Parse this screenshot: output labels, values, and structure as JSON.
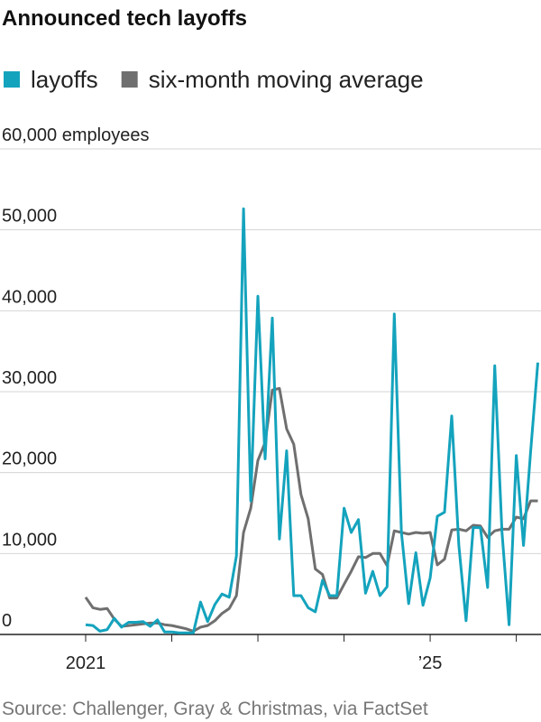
{
  "chart_data": {
    "type": "line",
    "title": "Announced tech layoffs",
    "source": "Source: Challenger, Gray & Christmas, via FactSet",
    "categories": [
      "2021",
      null,
      null,
      null,
      null,
      null,
      null,
      null,
      null,
      null,
      null,
      null,
      null,
      null,
      null,
      null,
      null,
      null,
      null,
      null,
      null,
      null,
      null,
      null,
      null,
      null,
      null,
      null,
      null,
      null,
      null,
      null,
      null,
      null,
      null,
      null,
      null,
      null,
      null,
      null,
      null,
      null,
      null,
      null,
      null,
      null,
      null,
      null,
      "’25",
      null,
      null,
      null,
      null,
      null,
      null,
      null,
      null,
      null,
      null,
      null,
      null,
      null,
      null,
      null
    ],
    "series": [
      {
        "name": "layoffs",
        "color": "#14a3bd",
        "values": [
          1200,
          1100,
          400,
          600,
          2000,
          900,
          1500,
          1500,
          1600,
          1000,
          1800,
          300,
          300,
          200,
          200,
          200,
          4000,
          1600,
          3700,
          5000,
          4600,
          9700,
          52600,
          16500,
          41800,
          21700,
          39100,
          11800,
          22700,
          4800,
          4800,
          3300,
          2800,
          6700,
          4800,
          4800,
          15600,
          12600,
          14200,
          5100,
          7800,
          4800,
          5900,
          39600,
          12600,
          3800,
          10100,
          3600,
          7000,
          14600,
          15100,
          27000,
          11000,
          1700,
          13200,
          13200,
          5800,
          33200,
          12700,
          1200,
          22100,
          11000,
          22600,
          33600
        ]
      },
      {
        "name": "six-month moving average",
        "color": "#6f6f6f",
        "values": [
          4600,
          3300,
          3100,
          3200,
          1900,
          1000,
          1100,
          1200,
          1300,
          1400,
          1400,
          1200,
          1100,
          900,
          700,
          400,
          900,
          1100,
          1700,
          2600,
          3200,
          4800,
          12600,
          15600,
          21500,
          23700,
          30200,
          30400,
          25400,
          23500,
          17300,
          14300,
          8100,
          7400,
          4500,
          4500,
          6200,
          7800,
          9600,
          9500,
          10000,
          10000,
          8500,
          12800,
          12600,
          12400,
          12600,
          12500,
          12600,
          8600,
          9300,
          12900,
          13000,
          12800,
          13500,
          13400,
          12000,
          12800,
          13000,
          13000,
          14500,
          14300,
          16500,
          16500
        ]
      }
    ],
    "ylim": [
      0,
      60000
    ],
    "yticks": [
      0,
      {
        "value": 10000,
        "label": "10,000"
      },
      {
        "value": 20000,
        "label": "20,000"
      },
      {
        "value": 30000,
        "label": "30,000"
      },
      {
        "value": 40000,
        "label": "40,000"
      },
      {
        "value": 50000,
        "label": "50,000"
      },
      {
        "value": 60000,
        "label": "60,000 employees"
      }
    ],
    "grid": true
  }
}
